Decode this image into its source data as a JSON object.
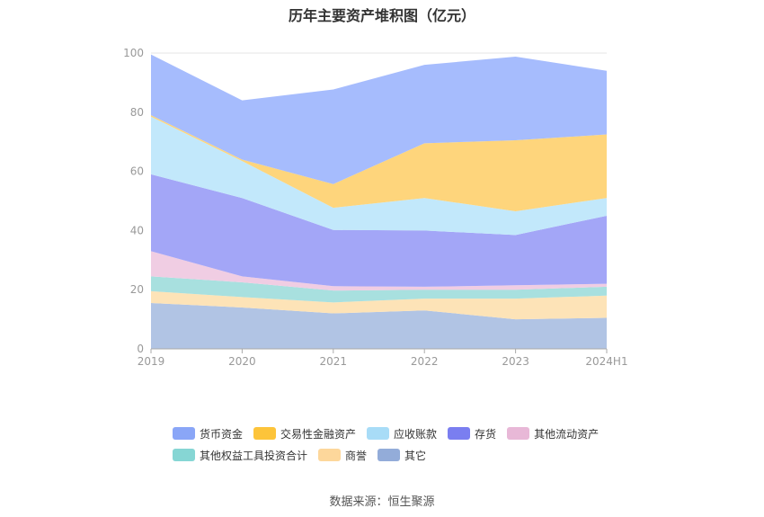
{
  "chart_data": {
    "type": "area",
    "stacked": true,
    "title": "历年主要资产堆积图（亿元）",
    "categories": [
      "2019",
      "2020",
      "2021",
      "2022",
      "2023",
      "2024H1"
    ],
    "y_ticks": [
      0,
      20,
      40,
      60,
      80,
      100
    ],
    "ylim": [
      0,
      100
    ],
    "grid": true,
    "legend_position": "bottom",
    "series": [
      {
        "name": "其它",
        "color": "#b1c4e4",
        "values": [
          15.5,
          14.0,
          12.0,
          13.0,
          10.0,
          10.5
        ]
      },
      {
        "name": "商誉",
        "color": "#fde3b7",
        "values": [
          4.0,
          3.5,
          3.7,
          4.0,
          7.0,
          7.5
        ]
      },
      {
        "name": "其他权益工具投资合计",
        "color": "#a8e0df",
        "values": [
          5.0,
          5.0,
          4.0,
          3.0,
          3.0,
          3.0
        ]
      },
      {
        "name": "其他流动资产",
        "color": "#f0cde3",
        "values": [
          8.5,
          2.0,
          1.5,
          1.0,
          1.5,
          1.0
        ]
      },
      {
        "name": "存货",
        "color": "#a3a6f7",
        "values": [
          26.0,
          26.5,
          19.0,
          19.0,
          17.0,
          23.0
        ]
      },
      {
        "name": "应收账款",
        "color": "#c2e8fb",
        "values": [
          19.5,
          12.5,
          7.5,
          11.0,
          8.0,
          6.0
        ]
      },
      {
        "name": "交易性金融资产",
        "color": "#fed57c",
        "values": [
          0.5,
          0.5,
          8.0,
          18.5,
          24.0,
          21.5
        ]
      },
      {
        "name": "货币资金",
        "color": "#a6bcfd",
        "values": [
          20.5,
          20.0,
          32.0,
          26.5,
          28.3,
          21.5
        ]
      }
    ]
  },
  "legend": {
    "items": [
      {
        "label": "货币资金",
        "color": "#8aa6f7"
      },
      {
        "label": "交易性金融资产",
        "color": "#fdc43a"
      },
      {
        "label": "应收账款",
        "color": "#a8dcf7"
      },
      {
        "label": "存货",
        "color": "#7a7ef0"
      },
      {
        "label": "其他流动资产",
        "color": "#e8b8d7"
      },
      {
        "label": "其他权益工具投资合计",
        "color": "#86d6d4"
      },
      {
        "label": "商誉",
        "color": "#fdd79b"
      },
      {
        "label": "其它",
        "color": "#93acd9"
      }
    ]
  },
  "footer": {
    "source": "数据来源：恒生聚源"
  }
}
